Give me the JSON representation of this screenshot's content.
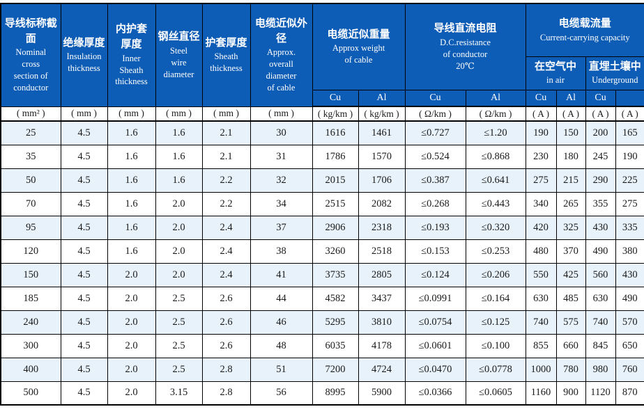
{
  "table": {
    "columns": {
      "nominal": {
        "zh": "导线标称截面",
        "en": "Nominal\ncross\nsection of\nconductor"
      },
      "insulation": {
        "zh": "绝缘厚度",
        "en": "Insulation\nthickness"
      },
      "inner_sheath": {
        "zh": "内护套\n厚度",
        "en": "Inner\nSheath\nthickness"
      },
      "steel_wire": {
        "zh": "钢丝直径",
        "en": "Steel\nwire\ndiameter"
      },
      "sheath": {
        "zh": "护套厚度",
        "en": "Sheath\nthickness"
      },
      "overall_diameter": {
        "zh": "电缆近似外径",
        "en": "Approx.\noverall\ndiameter\nof cable"
      },
      "weight": {
        "zh": "电缆近似重量",
        "en": "Approx weight\nof cable"
      },
      "dc_resistance": {
        "zh": "导线直流电阻",
        "en": "D.C.resistance\nof conductor\n20℃"
      },
      "capacity": {
        "zh": "电缆载流量",
        "en": "Current-carrying capacity"
      },
      "in_air": {
        "zh": "在空气中",
        "en": "in air"
      },
      "underground": {
        "zh": "直埋土壤中",
        "en": "Underground"
      }
    },
    "subheaders": [
      "Cu",
      "Al",
      "Cu",
      "Al",
      "Cu",
      "Al",
      "Cu",
      ""
    ],
    "units": [
      "( mm² )",
      "( mm )",
      "( mm )",
      "( mm )",
      "( mm )",
      "( mm )",
      "( kg/km )",
      "( kg/km )",
      "( Ω/km )",
      "( Ω/km )",
      "( A )",
      "( A )",
      "( A )",
      "( A )"
    ],
    "rows": [
      [
        "25",
        "4.5",
        "1.6",
        "1.6",
        "2.1",
        "30",
        "1616",
        "1461",
        "≤0.727",
        "≤1.20",
        "190",
        "150",
        "200",
        "165"
      ],
      [
        "35",
        "4.5",
        "1.6",
        "1.6",
        "2.1",
        "31",
        "1786",
        "1570",
        "≤0.524",
        "≤0.868",
        "230",
        "180",
        "245",
        "190"
      ],
      [
        "50",
        "4.5",
        "1.6",
        "1.6",
        "2.2",
        "32",
        "2015",
        "1706",
        "≤0.387",
        "≤0.641",
        "275",
        "215",
        "290",
        "225"
      ],
      [
        "70",
        "4.5",
        "1.6",
        "2.0",
        "2.2",
        "34",
        "2515",
        "2082",
        "≤0.268",
        "≤0.443",
        "340",
        "265",
        "355",
        "275"
      ],
      [
        "95",
        "4.5",
        "1.6",
        "2.0",
        "2.4",
        "37",
        "2906",
        "2318",
        "≤0.193",
        "≤0.320",
        "420",
        "325",
        "430",
        "335"
      ],
      [
        "120",
        "4.5",
        "1.6",
        "2.0",
        "2.4",
        "38",
        "3260",
        "2518",
        "≤0.153",
        "≤0.253",
        "480",
        "370",
        "490",
        "380"
      ],
      [
        "150",
        "4.5",
        "2.0",
        "2.0",
        "2.4",
        "41",
        "3735",
        "2805",
        "≤0.124",
        "≤0.206",
        "550",
        "425",
        "560",
        "430"
      ],
      [
        "185",
        "4.5",
        "2.0",
        "2.5",
        "2.6",
        "44",
        "4582",
        "3437",
        "≤0.0991",
        "≤0.164",
        "630",
        "485",
        "630",
        "490"
      ],
      [
        "240",
        "4.5",
        "2.0",
        "2.5",
        "2.6",
        "46",
        "5295",
        "3810",
        "≤0.0754",
        "≤0.125",
        "740",
        "575",
        "740",
        "570"
      ],
      [
        "300",
        "4.5",
        "2.0",
        "2.5",
        "2.6",
        "48",
        "6035",
        "4178",
        "≤0.0601",
        "≤0.100",
        "855",
        "660",
        "845",
        "650"
      ],
      [
        "400",
        "4.5",
        "2.0",
        "2.5",
        "2.8",
        "51",
        "7200",
        "4724",
        "≤0.0470",
        "≤0.0778",
        "1000",
        "780",
        "980",
        "760"
      ],
      [
        "500",
        "4.5",
        "2.0",
        "3.15",
        "2.8",
        "56",
        "8995",
        "5900",
        "≤0.0366",
        "≤0.0605",
        "1160",
        "900",
        "1120",
        "870"
      ]
    ]
  },
  "colors": {
    "header_bg": "#0d5cb5",
    "header_text": "#ffffff",
    "alt_row_bg": "#e7f2fa",
    "grid_line": "#000000",
    "body_text": "#1a1a1a"
  }
}
